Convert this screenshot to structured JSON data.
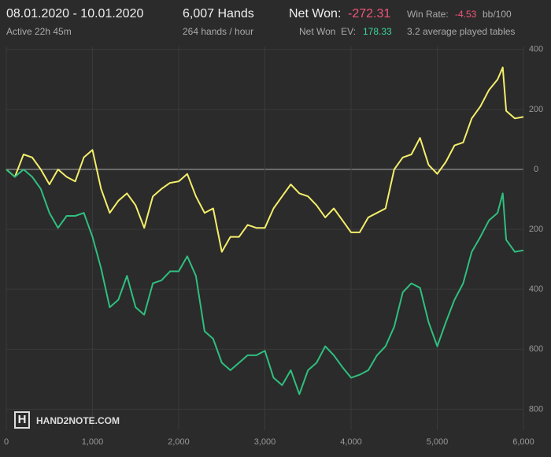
{
  "header": {
    "date_range": "08.01.2020 - 10.01.2020",
    "active": "Active 22h 45m",
    "hands": "6,007 Hands",
    "hands_per_hour": "264 hands / hour",
    "net_won_label": "Net Won:",
    "net_won_value": "-272.31",
    "net_won_ev_label": "Net Won  EV:",
    "net_won_ev_value": "178.33",
    "win_rate_label": "Win Rate:",
    "win_rate_value": "-4.53",
    "win_rate_unit": "bb/100",
    "tables": "3.2 average played tables"
  },
  "logo": "HAND2NOTE.COM",
  "chart_data": {
    "type": "line",
    "x": [
      0,
      100,
      200,
      300,
      400,
      500,
      600,
      700,
      800,
      900,
      1000,
      1100,
      1200,
      1300,
      1400,
      1500,
      1600,
      1700,
      1800,
      1900,
      2000,
      2100,
      2200,
      2300,
      2400,
      2500,
      2600,
      2700,
      2800,
      2900,
      3000,
      3100,
      3200,
      3300,
      3400,
      3500,
      3600,
      3700,
      3800,
      3900,
      4000,
      4100,
      4200,
      4300,
      4400,
      4500,
      4600,
      4700,
      4800,
      4900,
      5000,
      5100,
      5200,
      5300,
      5400,
      5500,
      5600,
      5700,
      5760,
      5800,
      5900,
      6000
    ],
    "series": [
      {
        "color": "#f4ee6a",
        "values": [
          0,
          -25,
          50,
          40,
          0,
          -50,
          0,
          -25,
          -40,
          40,
          65,
          -65,
          -145,
          -105,
          -80,
          -120,
          -195,
          -90,
          -65,
          -45,
          -40,
          -15,
          -90,
          -145,
          -130,
          -275,
          -225,
          -225,
          -185,
          -195,
          -195,
          -130,
          -90,
          -50,
          -80,
          -90,
          -120,
          -160,
          -130,
          -170,
          -210,
          -210,
          -160,
          -145,
          -130,
          0,
          40,
          50,
          105,
          15,
          -15,
          25,
          80,
          90,
          170,
          210,
          265,
          300,
          340,
          195,
          170,
          175
        ]
      },
      {
        "color": "#2fbf7f",
        "values": [
          0,
          -25,
          0,
          -25,
          -65,
          -145,
          -195,
          -155,
          -155,
          -145,
          -225,
          -330,
          -460,
          -435,
          -355,
          -460,
          -485,
          -380,
          -370,
          -340,
          -340,
          -290,
          -355,
          -540,
          -565,
          -645,
          -670,
          -645,
          -620,
          -620,
          -605,
          -695,
          -720,
          -670,
          -750,
          -670,
          -645,
          -590,
          -620,
          -660,
          -695,
          -685,
          -670,
          -620,
          -590,
          -525,
          -410,
          -380,
          -395,
          -510,
          -590,
          -510,
          -435,
          -380,
          -275,
          -225,
          -170,
          -145,
          -80,
          -235,
          -275,
          -270
        ]
      }
    ],
    "xlim": [
      0,
      6000
    ],
    "xticks": [
      0,
      {
        "value": 1000,
        "label": "1,000"
      },
      {
        "value": 2000,
        "label": "2,000"
      },
      {
        "value": 3000,
        "label": "3,000"
      },
      {
        "value": 4000,
        "label": "4,000"
      },
      {
        "value": 5000,
        "label": "5,000"
      },
      {
        "value": 6000,
        "label": "6,000"
      }
    ],
    "ylim": [
      -870,
      410
    ],
    "yticks": [
      400,
      200,
      0,
      {
        "value": -200,
        "label": "200"
      },
      {
        "value": -400,
        "label": "400"
      },
      {
        "value": -600,
        "label": "600"
      },
      {
        "value": -800,
        "label": "800"
      }
    ],
    "grid": true
  }
}
